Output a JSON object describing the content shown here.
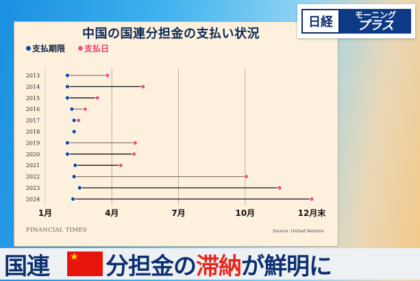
{
  "logo": {
    "nikkei": "日経",
    "show_line1": "モーニング",
    "show_line2": "プラス"
  },
  "chart_data": {
    "type": "dumbbell",
    "title": "中国の国連分担金の支払い状況",
    "legend": [
      {
        "name": "支払期限",
        "color": "#0b4a9e"
      },
      {
        "name": "支払日",
        "color": "#f0507a"
      }
    ],
    "x_unit": "months elapsed since January 1",
    "x_ticks": [
      {
        "label": "1月",
        "value": 0
      },
      {
        "label": "4月",
        "value": 3
      },
      {
        "label": "7月",
        "value": 6
      },
      {
        "label": "10月",
        "value": 9
      },
      {
        "label": "12月末",
        "value": 12
      }
    ],
    "xlim": [
      0,
      12
    ],
    "grid": "vertical",
    "categories": [
      "2013",
      "2014",
      "2015",
      "2016",
      "2017",
      "2018",
      "2019",
      "2020",
      "2021",
      "2022",
      "2023",
      "2024"
    ],
    "series": [
      {
        "name": "支払期限",
        "values": [
          1.0,
          1.0,
          1.0,
          1.2,
          1.3,
          1.3,
          1.0,
          1.0,
          1.35,
          1.3,
          1.55,
          1.25
        ]
      },
      {
        "name": "支払日",
        "values": [
          2.8,
          4.4,
          2.35,
          1.8,
          1.5,
          1.3,
          4.05,
          4.0,
          3.4,
          9.05,
          10.55,
          12.0
        ]
      }
    ],
    "credit": "FINANCIAL TIMES",
    "source": "Source: United Nations"
  },
  "caption": {
    "part1": "国連",
    "part2": "分担金の",
    "part3": "滞納",
    "part4": "が鮮明に"
  }
}
